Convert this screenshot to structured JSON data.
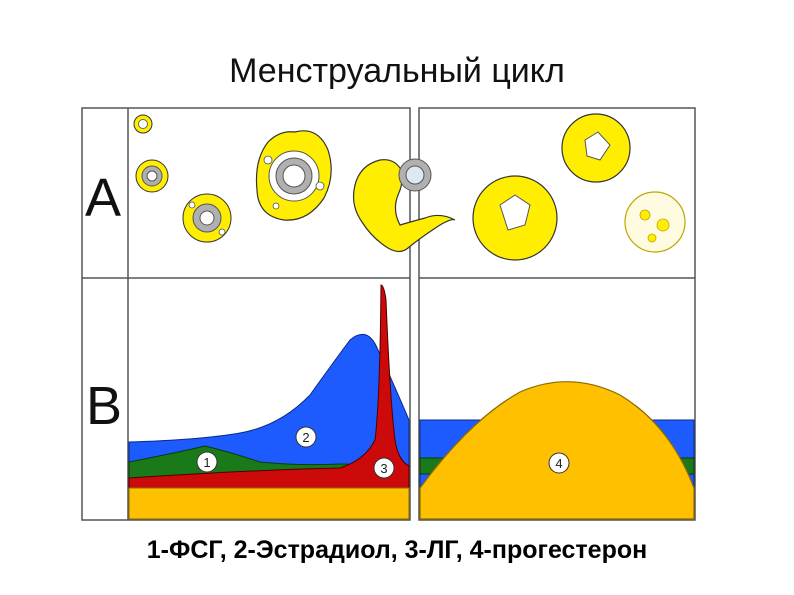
{
  "title": "Менструальный цикл",
  "rows": {
    "a_label": "A",
    "b_label": "B"
  },
  "curve_labels": [
    "1",
    "2",
    "3",
    "4"
  ],
  "caption": "1-ФСГ, 2-Эстрадиол, 3-ЛГ, 4-прогестерон",
  "colors": {
    "estradiol": "#1e5bff",
    "fsh": "#1a7a1a",
    "lh": "#cc0a0a",
    "progesterone": "#ffc000",
    "follicle": "#ffee00",
    "cell": "#a8a8a8"
  }
}
